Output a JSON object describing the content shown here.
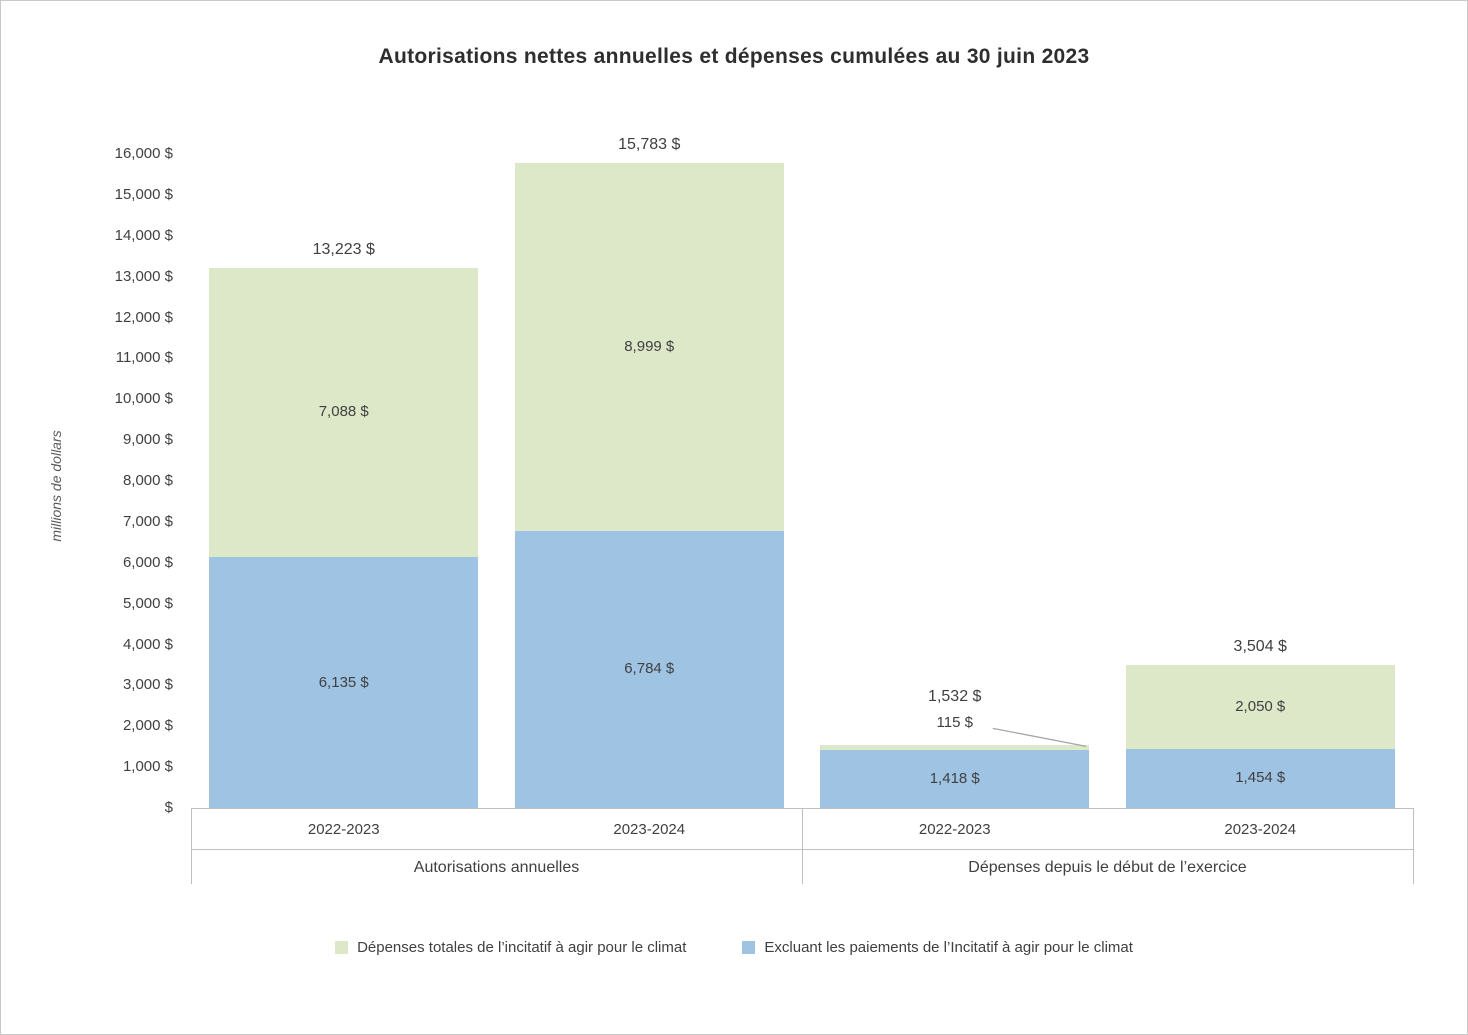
{
  "chart_data": {
    "type": "bar",
    "stacked": true,
    "title": "Autorisations nettes annuelles et dépenses cumulées au 30 juin 2023",
    "ylabel": "millions de dollars",
    "ylim": [
      0,
      16000
    ],
    "grid": false,
    "legend_position": "bottom",
    "categories": [
      "2022-2023",
      "2023-2024",
      "2022-2023",
      "2023-2024"
    ],
    "group_labels": [
      "Autorisations annuelles",
      "Dépenses depuis le début de l’exercice"
    ],
    "series": [
      {
        "name": "Excluant les paiements de l’Incitatif à agir pour le climat",
        "color": "#9fc3e3",
        "values": [
          6135,
          6784,
          1418,
          1454
        ],
        "labels": [
          "6,135 $",
          "6,784 $",
          "1,418 $",
          "1,454 $"
        ]
      },
      {
        "name": "Dépenses totales de l’incitatif à agir pour le climat",
        "color": "#dde8c9",
        "values": [
          7088,
          8999,
          115,
          2050
        ],
        "labels": [
          "7,088 $",
          "8,999 $",
          "115 $",
          "2,050 $"
        ]
      }
    ],
    "totals": {
      "values": [
        13223,
        15783,
        1532,
        3504
      ],
      "labels": [
        "13,223 $",
        "15,783 $",
        "1,532 $",
        "3,504 $"
      ]
    },
    "ytick_labels": [
      "$",
      "1,000 $",
      "2,000 $",
      "3,000 $",
      "4,000 $",
      "5,000 $",
      "6,000 $",
      "7,000 $",
      "8,000 $",
      "9,000 $",
      "10,000 $",
      "11,000 $",
      "12,000 $",
      "13,000 $",
      "14,000 $",
      "15,000 $",
      "16,000 $"
    ],
    "callout": {
      "bar_index": 2,
      "series_index": 1,
      "label": "115 $"
    },
    "legend": [
      {
        "label": "Dépenses totales de l’incitatif à agir pour le climat",
        "color": "#dde8c9"
      },
      {
        "label": "Excluant les paiements de l’Incitatif à agir pour le climat",
        "color": "#9fc3e3"
      }
    ]
  }
}
